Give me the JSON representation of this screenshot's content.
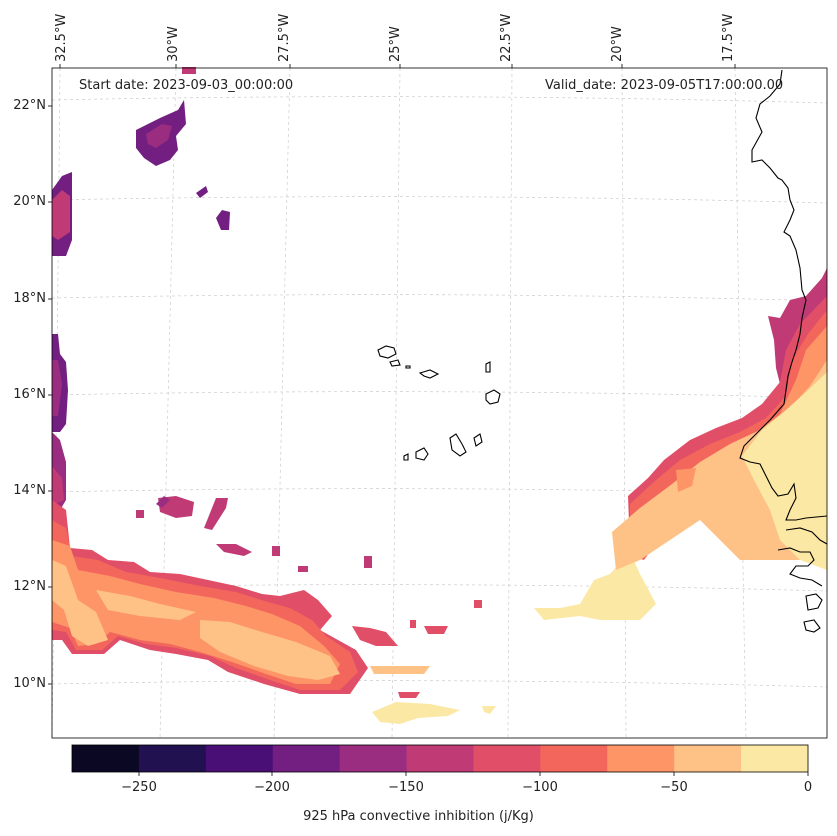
{
  "map": {
    "title_left": "Start date: 2023-09-03_00:00:00",
    "title_right": "Valid_date: 2023-09-05T17:00:00.00",
    "lon_labels": [
      "32.5°W",
      "30°W",
      "27.5°W",
      "25°W",
      "22.5°W",
      "20°W",
      "17.5°W"
    ],
    "lat_labels": [
      "22°N",
      "20°N",
      "18°N",
      "16°N",
      "14°N",
      "12°N",
      "10°N"
    ]
  },
  "colorbar": {
    "label": "925 hPa convective inhibition (j/Kg)",
    "ticks": [
      "−250",
      "−200",
      "−150",
      "−100",
      "−50",
      "0"
    ],
    "levels": [
      -275,
      -250,
      -225,
      -200,
      -175,
      -150,
      -125,
      -100,
      -75,
      -50,
      -25,
      0
    ],
    "colors": [
      "#0a0822",
      "#221150",
      "#4a0f77",
      "#721f81",
      "#9a2d80",
      "#c03a76",
      "#e04f67",
      "#f2665c",
      "#fd9567",
      "#fec287",
      "#fce8a5"
    ]
  },
  "palette": {
    "deep_purple": "#721f81",
    "purple": "#9a2d80",
    "magenta": "#c03a76",
    "rose": "#e04f67",
    "red_orange": "#f2665c",
    "orange": "#fd9567",
    "light_orange": "#fec287",
    "cream": "#fce8a5"
  }
}
